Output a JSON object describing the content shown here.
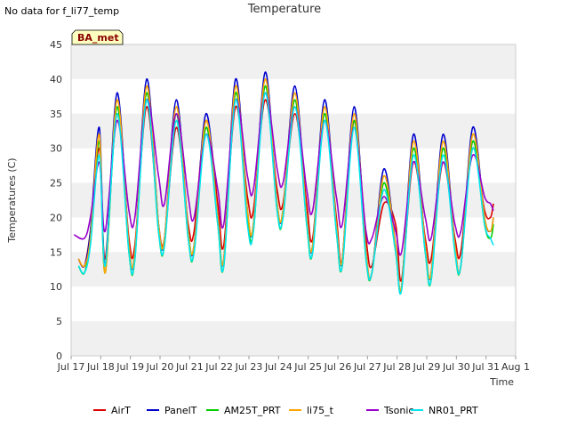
{
  "note": "No data for f_li77_temp",
  "chart_data": {
    "type": "line",
    "title": "Temperature",
    "xlabel": "Time",
    "ylabel": "Temperatures (C)",
    "site_tag": "BA_met",
    "ylim": [
      0,
      45
    ],
    "yticks": [
      0,
      5,
      10,
      15,
      20,
      25,
      30,
      35,
      40,
      45
    ],
    "xlim": [
      17,
      32
    ],
    "xticks": [
      {
        "v": 17,
        "label": "Jul 17"
      },
      {
        "v": 18,
        "label": "Jul 18"
      },
      {
        "v": 19,
        "label": "Jul 19"
      },
      {
        "v": 20,
        "label": "Jul 20"
      },
      {
        "v": 21,
        "label": "Jul 21"
      },
      {
        "v": 22,
        "label": "Jul 22"
      },
      {
        "v": 23,
        "label": "Jul 23"
      },
      {
        "v": 24,
        "label": "Jul 24"
      },
      {
        "v": 25,
        "label": "Jul 25"
      },
      {
        "v": 26,
        "label": "Jul 26"
      },
      {
        "v": 27,
        "label": "Jul 27"
      },
      {
        "v": 28,
        "label": "Jul 28"
      },
      {
        "v": 29,
        "label": "Jul 29"
      },
      {
        "v": 30,
        "label": "Jul 30"
      },
      {
        "v": 31,
        "label": "Jul 31"
      },
      {
        "v": 32,
        "label": "Aug 1"
      }
    ],
    "grid": "horizontal bands",
    "legend_position": "bottom",
    "series": [
      {
        "name": "AirT",
        "color": "#dd0000",
        "x": [
          17.25,
          17.45,
          17.65,
          17.95,
          18.15,
          18.55,
          18.95,
          19.15,
          19.55,
          19.95,
          20.15,
          20.55,
          20.95,
          21.15,
          21.55,
          21.95,
          22.15,
          22.55,
          22.95,
          23.15,
          23.55,
          23.95,
          24.15,
          24.55,
          24.95,
          25.15,
          25.55,
          25.95,
          26.15,
          26.55,
          26.95,
          27.15,
          27.55,
          27.95,
          28.15,
          28.55,
          28.95,
          29.15,
          29.55,
          29.95,
          30.15,
          30.55,
          30.95,
          31.15,
          31.25
        ],
        "y": [
          14,
          13,
          18,
          30,
          14,
          35,
          17,
          16,
          36,
          19,
          17,
          33,
          19,
          18,
          34,
          22,
          16,
          36,
          23,
          21,
          37,
          24,
          22,
          35,
          22,
          17,
          34,
          20,
          14,
          34,
          17,
          13,
          22,
          19,
          11,
          28,
          17,
          14,
          28,
          17,
          15,
          30,
          21,
          20,
          22
        ]
      },
      {
        "name": "PanelT",
        "color": "#0000cc",
        "x": [
          17.25,
          17.45,
          17.65,
          17.95,
          18.15,
          18.55,
          18.95,
          19.15,
          19.55,
          19.95,
          20.15,
          20.55,
          20.95,
          21.15,
          21.55,
          21.95,
          22.15,
          22.55,
          22.95,
          23.15,
          23.55,
          23.95,
          24.15,
          24.55,
          24.95,
          25.15,
          25.55,
          25.95,
          26.15,
          26.55,
          26.95,
          27.15,
          27.55,
          27.95,
          28.15,
          28.55,
          28.95,
          29.15,
          29.55,
          29.95,
          30.15,
          30.55,
          30.95,
          31.15,
          31.25
        ],
        "y": [
          14,
          13,
          18,
          33,
          13,
          38,
          16,
          15,
          40,
          19,
          17,
          37,
          18,
          16,
          35,
          20,
          14,
          40,
          21,
          19,
          41,
          22,
          21,
          39,
          20,
          16,
          37,
          19,
          14,
          36,
          15,
          12,
          27,
          16,
          10,
          32,
          16,
          12,
          32,
          16,
          13,
          33,
          20,
          18,
          20
        ]
      },
      {
        "name": "AM25T_PRT",
        "color": "#00cc00",
        "x": [
          17.25,
          17.45,
          17.65,
          17.95,
          18.15,
          18.55,
          18.95,
          19.15,
          19.55,
          19.95,
          20.15,
          20.55,
          20.95,
          21.15,
          21.55,
          21.95,
          22.15,
          22.55,
          22.95,
          23.15,
          23.55,
          23.95,
          24.15,
          24.55,
          24.95,
          25.15,
          25.55,
          25.95,
          26.15,
          26.55,
          26.95,
          27.15,
          27.55,
          27.95,
          28.15,
          28.55,
          28.95,
          29.15,
          29.55,
          29.95,
          30.15,
          30.55,
          30.95,
          31.15,
          31.25
        ],
        "y": [
          13,
          12,
          17,
          31,
          12,
          36,
          15,
          14,
          38,
          18,
          16,
          35,
          17,
          15,
          33,
          19,
          13,
          38,
          20,
          18,
          39,
          21,
          20,
          37,
          19,
          15,
          35,
          18,
          13,
          34,
          14,
          12,
          25,
          15,
          10,
          30,
          15,
          11,
          30,
          15,
          13,
          31,
          19,
          17,
          19
        ]
      },
      {
        "name": "li75_t",
        "color": "#ffa500",
        "x": [
          17.25,
          17.45,
          17.65,
          17.95,
          18.15,
          18.55,
          18.95,
          19.15,
          19.55,
          19.95,
          20.15,
          20.55,
          20.95,
          21.15,
          21.55,
          21.95,
          22.15,
          22.55,
          22.95,
          23.15,
          23.55,
          23.95,
          24.15,
          24.55,
          24.95,
          25.15,
          25.55,
          25.95,
          26.15,
          26.55,
          26.95,
          27.15,
          27.55,
          27.95,
          28.15,
          28.55,
          28.95,
          29.15,
          29.55,
          29.95,
          30.15,
          30.55,
          30.95,
          31.15,
          31.25
        ],
        "y": [
          14,
          13,
          17,
          32,
          12,
          37,
          16,
          15,
          39,
          19,
          17,
          36,
          18,
          16,
          34,
          20,
          14,
          39,
          21,
          19,
          40,
          22,
          21,
          38,
          20,
          16,
          36,
          19,
          14,
          35,
          15,
          12,
          26,
          16,
          10,
          31,
          16,
          12,
          31,
          16,
          13,
          32,
          20,
          18,
          20
        ]
      },
      {
        "name": "Tsonic",
        "color": "#9900cc",
        "x": [
          17.1,
          17.45,
          17.65,
          17.95,
          18.15,
          18.55,
          18.95,
          19.15,
          19.55,
          19.95,
          20.15,
          20.55,
          20.95,
          21.15,
          21.55,
          21.95,
          22.15,
          22.55,
          22.95,
          23.15,
          23.55,
          23.95,
          24.15,
          24.55,
          24.95,
          25.15,
          25.55,
          25.95,
          26.15,
          26.55,
          26.95,
          27.15,
          27.55,
          27.95,
          28.15,
          28.55,
          28.95,
          29.15,
          29.55,
          29.95,
          30.15,
          30.55,
          30.95,
          31.15,
          31.25
        ],
        "y": [
          17.5,
          17,
          20,
          28,
          18,
          34,
          21,
          20,
          37,
          26,
          22,
          35,
          23,
          20,
          32,
          24,
          19,
          37,
          26,
          24,
          38,
          27,
          25,
          36,
          24,
          21,
          34,
          23,
          19,
          33,
          18,
          17,
          23,
          18,
          15,
          28,
          20,
          17,
          28,
          19,
          18,
          29,
          23,
          22,
          21
        ]
      },
      {
        "name": "NR01_PRT",
        "color": "#00e5ee",
        "x": [
          17.25,
          17.45,
          17.65,
          17.95,
          18.15,
          18.55,
          18.95,
          19.15,
          19.55,
          19.95,
          20.15,
          20.55,
          20.95,
          21.15,
          21.55,
          21.95,
          22.15,
          22.55,
          22.95,
          23.15,
          23.55,
          23.95,
          24.15,
          24.55,
          24.95,
          25.15,
          25.55,
          25.95,
          26.15,
          26.55,
          26.95,
          27.15,
          27.55,
          27.95,
          28.15,
          28.55,
          28.95,
          29.15,
          29.55,
          29.95,
          30.15,
          30.55,
          30.95,
          31.15,
          31.25
        ],
        "y": [
          13,
          12,
          16,
          29,
          13,
          35,
          15,
          14,
          37,
          18,
          16,
          34,
          17,
          15,
          32,
          19,
          13,
          37,
          19,
          18,
          38,
          21,
          20,
          36,
          19,
          15,
          34,
          18,
          13,
          33,
          14,
          12,
          24,
          15,
          9.5,
          29,
          15,
          11,
          29,
          15,
          13,
          30,
          19,
          17,
          16
        ]
      }
    ]
  }
}
